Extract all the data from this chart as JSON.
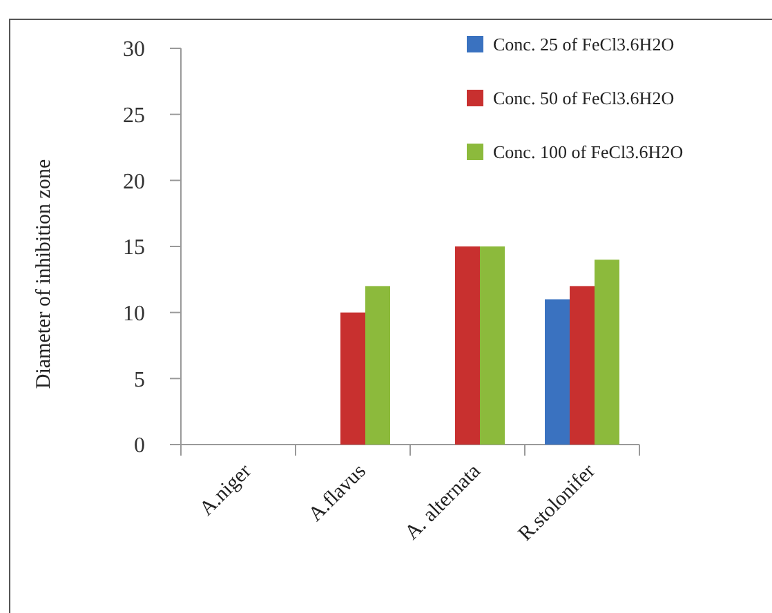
{
  "chart_data": {
    "type": "bar",
    "ylabel": "Diameter of inhibition zone",
    "categories": [
      "A.niger",
      "A.flavus",
      "A. alternata",
      "R.stolonifer"
    ],
    "series": [
      {
        "name": "Conc. 25 of FeCl3.6H2O",
        "color": "#3a72c0",
        "values": [
          0,
          0,
          0,
          11
        ]
      },
      {
        "name": "Conc. 50 of FeCl3.6H2O",
        "color": "#c8302f",
        "values": [
          0,
          10,
          15,
          12
        ]
      },
      {
        "name": "Conc. 100 of FeCl3.6H2O",
        "color": "#8cba3c",
        "values": [
          0,
          12,
          15,
          14
        ]
      }
    ],
    "ylim": [
      0,
      30
    ],
    "yticks": [
      0,
      5,
      10,
      15,
      20,
      25,
      30
    ],
    "grid": false,
    "legend": "top right"
  }
}
